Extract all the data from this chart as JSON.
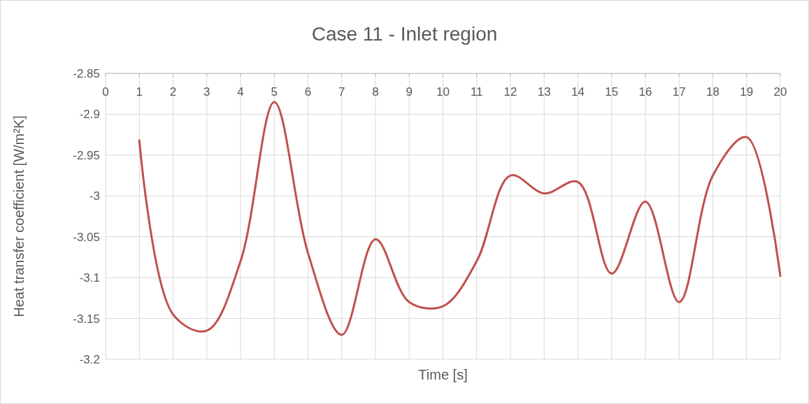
{
  "chart_data": {
    "type": "line",
    "title": "Case 11 - Inlet region",
    "xlabel": "Time [s]",
    "ylabel": "Heat transfer coefficient [W/m²K]",
    "x": [
      1,
      2,
      3,
      4,
      5,
      6,
      7,
      8,
      9,
      10,
      11,
      12,
      13,
      14,
      15,
      16,
      17,
      18,
      19,
      20
    ],
    "series": [
      {
        "color": "#c0504d",
        "values": [
          -2.932,
          -3.145,
          -3.165,
          -3.08,
          -2.885,
          -3.07,
          -3.17,
          -3.053,
          -3.13,
          -3.135,
          -3.08,
          -2.975,
          -2.997,
          -2.983,
          -3.095,
          -3.007,
          -3.13,
          -2.975,
          -2.928,
          -3.098
        ]
      }
    ],
    "xlim": [
      0,
      20
    ],
    "xticks": [
      0,
      1,
      2,
      3,
      4,
      5,
      6,
      7,
      8,
      9,
      10,
      11,
      12,
      13,
      14,
      15,
      16,
      17,
      18,
      19,
      20
    ],
    "ylim": [
      -3.2,
      -2.85
    ],
    "yticks": [
      -3.2,
      -3.15,
      -3.1,
      -3.05,
      -3,
      -2.95,
      -2.9,
      -2.85
    ],
    "grid": true,
    "marker": "none",
    "line_style": "solid"
  }
}
